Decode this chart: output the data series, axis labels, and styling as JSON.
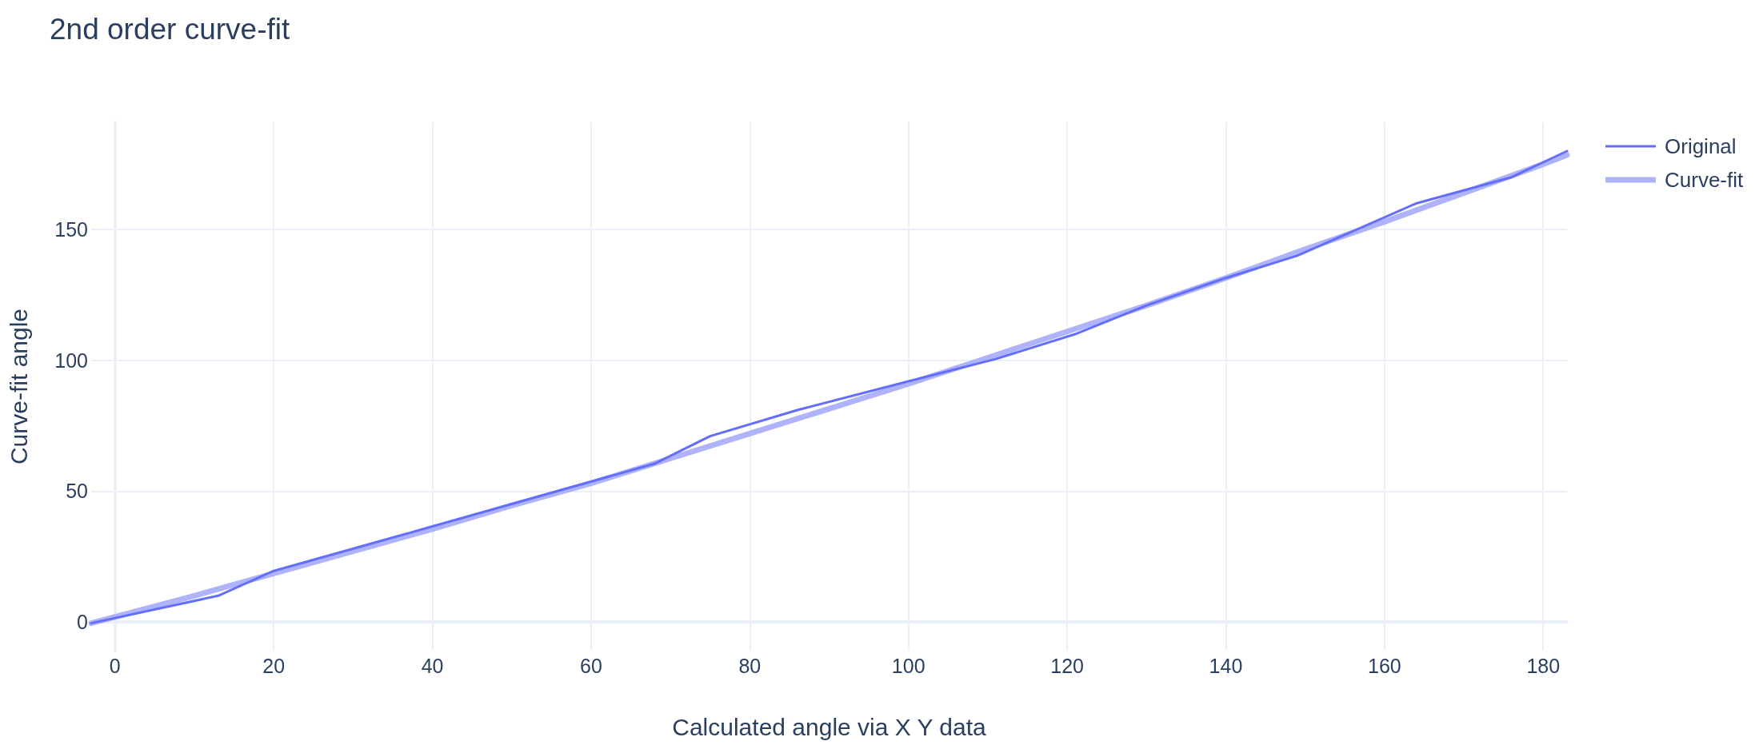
{
  "chart_data": {
    "type": "line",
    "title": "2nd order curve-fit",
    "xlabel": "Calculated angle via X Y data",
    "ylabel": "Curve-fit angle",
    "xlim": [
      -3,
      183
    ],
    "ylim": [
      -11,
      191
    ],
    "xticks": [
      0,
      20,
      40,
      60,
      80,
      100,
      120,
      140,
      160,
      180
    ],
    "yticks": [
      0,
      50,
      100,
      150
    ],
    "series": [
      {
        "name": "Original",
        "color": "#636efa",
        "x": [
          -3,
          13,
          20,
          40,
          68,
          75,
          86,
          100,
          111,
          121,
          130,
          140,
          149,
          164,
          176,
          183
        ],
        "values": [
          -0.5,
          10,
          19.5,
          36.5,
          60.5,
          71,
          81,
          92,
          100.5,
          110,
          121,
          131.5,
          140,
          160,
          170,
          180
        ]
      },
      {
        "name": "Curve-fit",
        "color": "#aeb3fc",
        "x": [
          -3,
          10,
          20,
          30,
          40,
          50,
          60,
          70,
          80,
          90,
          100,
          110,
          120,
          130,
          140,
          150,
          160,
          170,
          180,
          183
        ],
        "values": [
          -0.5,
          10,
          18.5,
          27,
          35.5,
          44.5,
          53,
          62.5,
          72,
          81.5,
          91,
          101,
          111,
          121,
          131.5,
          142.5,
          153,
          164,
          175,
          178.5
        ]
      }
    ],
    "grid": true,
    "legend": "top right",
    "marker": "none",
    "line_style": "solid"
  }
}
